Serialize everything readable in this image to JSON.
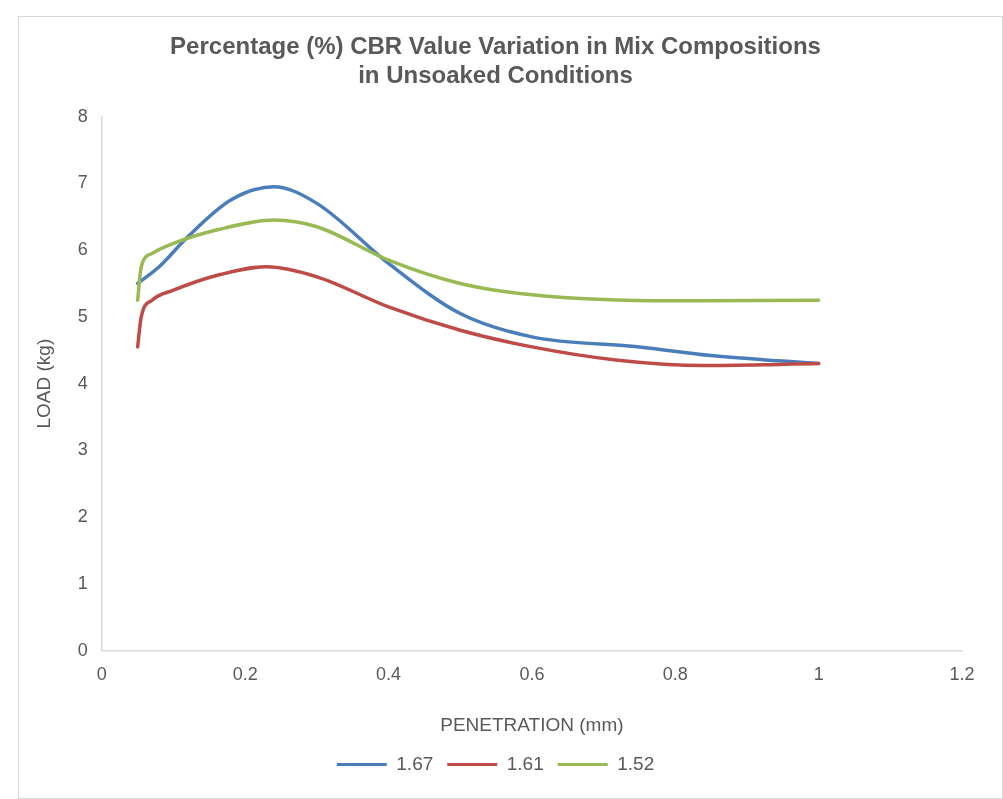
{
  "chart_data": {
    "type": "line",
    "title": "Percentage (%) CBR Value Variation in Mix Compositions in Unsoaked Conditions",
    "xlabel": "PENETRATION (mm)",
    "ylabel": "LOAD (kg)",
    "xlim": [
      0,
      1.2
    ],
    "xticks": [
      0,
      0.2,
      0.4,
      0.6,
      0.8,
      1,
      1.2
    ],
    "ylim": [
      0,
      8
    ],
    "yticks": [
      0,
      1,
      2,
      3,
      4,
      5,
      6,
      7,
      8
    ],
    "grid": false,
    "legend": "bottom",
    "marker": "none",
    "line_style": "solid",
    "series": [
      {
        "name": "1.67",
        "color": "#4a7ebb",
        "x": [
          0.05,
          0.08,
          0.12,
          0.18,
          0.24,
          0.3,
          0.4,
          0.5,
          0.6,
          0.75,
          0.85,
          1
        ],
        "values": [
          5.5,
          5.75,
          6.2,
          6.75,
          6.95,
          6.7,
          5.8,
          5.05,
          4.7,
          4.55,
          4.42,
          4.3
        ]
      },
      {
        "name": "1.61",
        "color": "#be4b48",
        "x": [
          0.05,
          0.055,
          0.07,
          0.1,
          0.16,
          0.23,
          0.3,
          0.4,
          0.5,
          0.6,
          0.72,
          0.84,
          1
        ],
        "values": [
          4.55,
          5.0,
          5.25,
          5.4,
          5.62,
          5.75,
          5.6,
          5.15,
          4.8,
          4.55,
          4.35,
          4.27,
          4.3
        ]
      },
      {
        "name": "1.52",
        "color": "#98b954",
        "x": [
          0.05,
          0.055,
          0.07,
          0.1,
          0.16,
          0.24,
          0.3,
          0.4,
          0.5,
          0.6,
          0.8,
          1
        ],
        "values": [
          5.25,
          5.75,
          5.95,
          6.1,
          6.3,
          6.45,
          6.35,
          5.85,
          5.5,
          5.33,
          5.24,
          5.25
        ]
      }
    ]
  }
}
